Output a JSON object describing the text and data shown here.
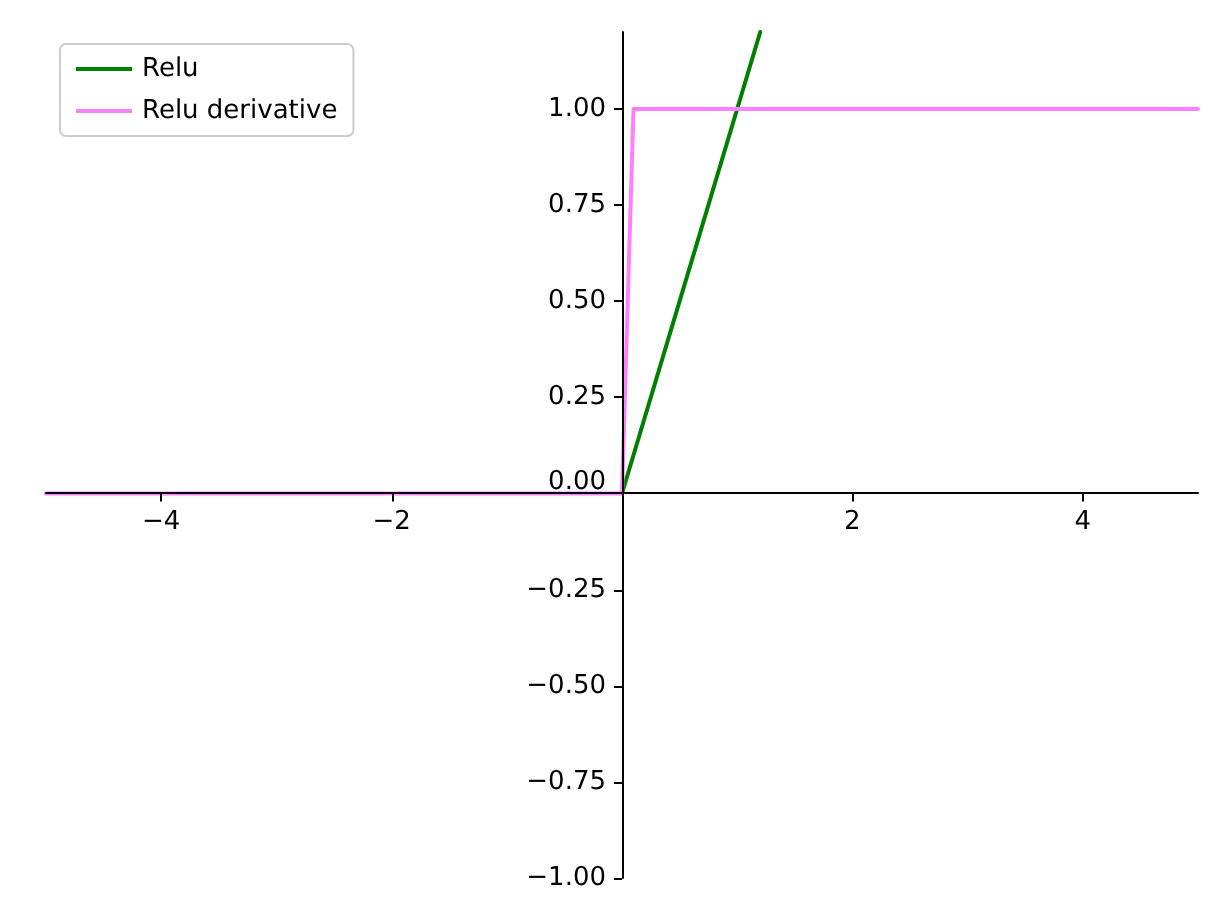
{
  "chart_data": {
    "type": "line",
    "xlim": [
      -5,
      5
    ],
    "ylim": [
      -1,
      1.2
    ],
    "xticks": [
      {
        "value": -4,
        "label": "−4"
      },
      {
        "value": -2,
        "label": "−2"
      },
      2,
      4
    ],
    "yticks": [
      {
        "value": -1,
        "label": "−1.00"
      },
      {
        "value": -0.75,
        "label": "−0.75"
      },
      {
        "value": -0.5,
        "label": "−0.50"
      },
      {
        "value": -0.25,
        "label": "−0.25"
      },
      {
        "value": 0,
        "label": "0.00"
      },
      {
        "value": 0.25,
        "label": "0.25"
      },
      {
        "value": 0.5,
        "label": "0.50"
      },
      {
        "value": 0.75,
        "label": "0.75"
      },
      {
        "value": 1,
        "label": "1.00"
      }
    ],
    "series": [
      {
        "name": "Relu",
        "color": "#008000",
        "x": [
          0,
          1.2
        ],
        "values": [
          0,
          1.2
        ]
      },
      {
        "name": "Relu derivative",
        "color": "#ff80ff",
        "x": [
          -5,
          0,
          0.1,
          5
        ],
        "values": [
          0,
          0,
          1,
          1
        ]
      }
    ],
    "grid": false,
    "legend": "top left",
    "marker": "none",
    "line_style": "solid"
  }
}
